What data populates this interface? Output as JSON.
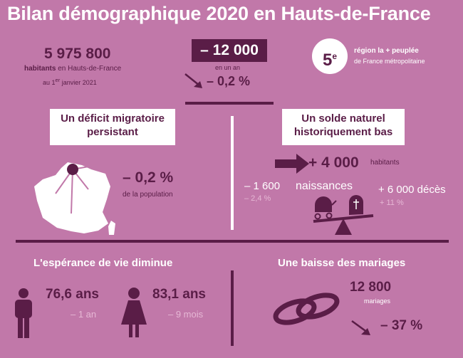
{
  "title": "Bilan démographique 2020 en Hauts-de-France",
  "population": {
    "value": "5 975 800",
    "label_bold": "habitants",
    "label_rest": " en Hauts-de-France",
    "date_prefix": "au 1",
    "date_sup": "er",
    "date_suffix": " janvier 2021"
  },
  "change": {
    "value": "– 12 000",
    "period": "en un an",
    "percent": "– 0,2 %"
  },
  "rank": {
    "number": "5",
    "sup": "e",
    "line1": "région la + peuplée",
    "line2": "de France métropolitaine"
  },
  "migration": {
    "heading": "Un déficit migratoire persistant",
    "value": "– 0,2 %",
    "label": "de la population"
  },
  "natural": {
    "heading": "Un solde naturel historiquement bas",
    "value": "+ 4 000",
    "unit": "habitants",
    "births_value": "– 1 600",
    "births_label": "naissances",
    "births_pct": "– 2,4 %",
    "deaths_value": "+ 6 000 décès",
    "deaths_pct": "+ 11 %"
  },
  "life": {
    "heading": "L'espérance de vie diminue",
    "men_value": "76,6 ans",
    "men_change": "– 1 an",
    "women_value": "83,1 ans",
    "women_change": "– 9 mois"
  },
  "marriage": {
    "heading": "Une baisse des mariages",
    "value": "12 800",
    "label": "mariages",
    "percent": "– 37 %"
  },
  "colors": {
    "background": "#c178a9",
    "dark": "#5a1d47",
    "pale": "#e6b8d5",
    "white": "#ffffff"
  }
}
